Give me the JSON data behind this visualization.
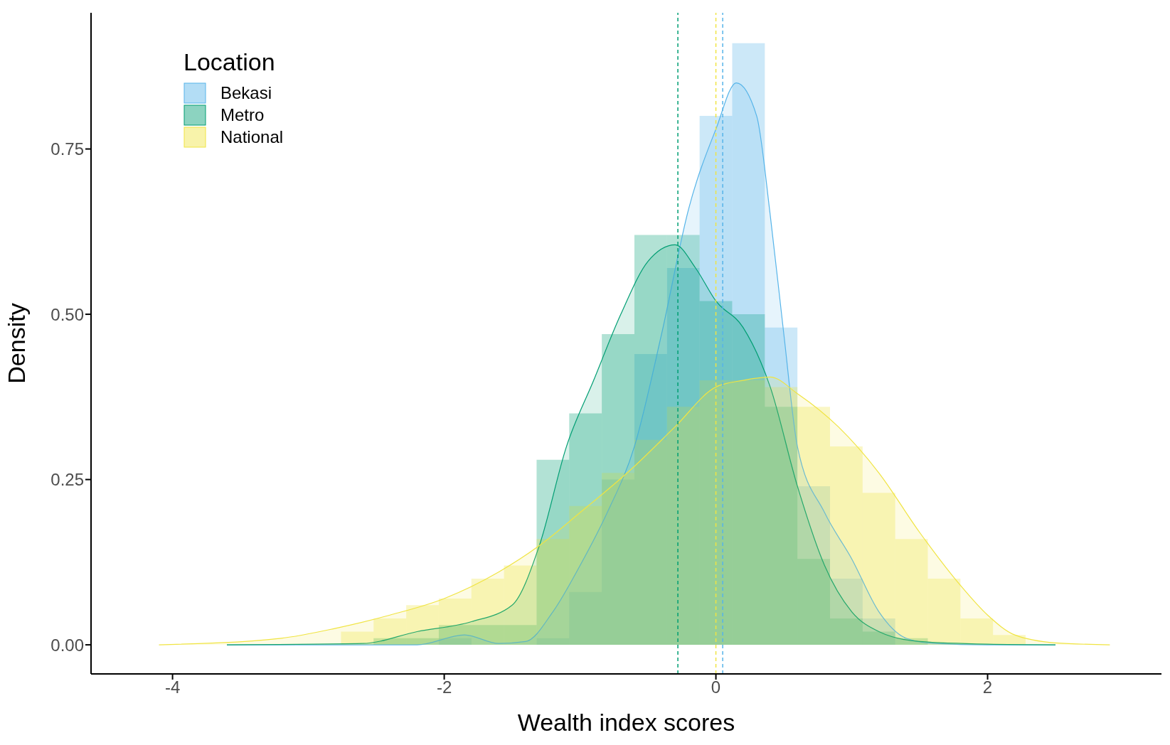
{
  "chart_data": {
    "type": "histogram",
    "xlabel": "Wealth index scores",
    "ylabel": "Density",
    "legend_title": "Location",
    "legend": "top left",
    "grid": false,
    "bins": [
      -2.76,
      -2.52,
      -2.28,
      -2.04,
      -1.8,
      -1.56,
      -1.32,
      -1.08,
      -0.84,
      -0.6,
      -0.36,
      -0.12,
      0.12,
      0.36,
      0.6,
      0.84,
      1.08,
      1.32,
      1.56,
      1.8,
      2.04,
      2.28
    ],
    "xlim": [
      -4.6,
      3.28
    ],
    "xticks": [
      -4,
      -2,
      0,
      2
    ],
    "ylim": [
      -0.044,
      0.956
    ],
    "yticks": [
      {
        "value": 0,
        "label": "0.00"
      },
      0.25,
      {
        "value": 0.5,
        "label": "0.50"
      },
      0.75
    ],
    "series": [
      {
        "name": "Bekasi",
        "color": "#56b4e9",
        "values": [
          0,
          0,
          0,
          0.01,
          null,
          0,
          0.01,
          0.08,
          0.25,
          0.44,
          0.57,
          0.8,
          0.91,
          0.48,
          0.24,
          0.1,
          0.04,
          0,
          0,
          0,
          0
        ]
      },
      {
        "name": "Metro",
        "color": "#009e73",
        "values": [
          0,
          0.01,
          0.01,
          0.03,
          0.03,
          0.03,
          0.28,
          0.35,
          0.47,
          0.62,
          0.62,
          0.52,
          0.5,
          0.36,
          0.13,
          0.04,
          0.02,
          0.01,
          0,
          0,
          0
        ]
      },
      {
        "name": "National",
        "color": "#f0e442",
        "values": [
          0.02,
          0.04,
          0.06,
          0.07,
          0.1,
          0.12,
          0.16,
          0.21,
          0.26,
          0.31,
          0.36,
          0.4,
          0.4,
          0.39,
          0.36,
          0.3,
          0.23,
          0.16,
          0.1,
          0.04,
          0.015
        ]
      },
      {
        "type": "area",
        "color": "#56b4e9",
        "x": [
          -3.6,
          -2.2,
          -1.85,
          -1.6,
          -1.4,
          -1.2,
          -1,
          -0.8,
          -0.6,
          -0.4,
          -0.2,
          0,
          0.15,
          0.3,
          0.4,
          0.5,
          0.6,
          0.8,
          1,
          1.2,
          1.4,
          1.6,
          2,
          2.5
        ],
        "values": [
          0,
          0,
          0.015,
          0.002,
          0.005,
          0.05,
          0.12,
          0.2,
          0.3,
          0.47,
          0.66,
          0.78,
          0.85,
          0.8,
          0.65,
          0.47,
          0.3,
          0.2,
          0.13,
          0.05,
          0.01,
          0.002,
          0,
          0
        ]
      },
      {
        "type": "area",
        "color": "#009e73",
        "x": [
          -3.6,
          -2.6,
          -2.2,
          -1.8,
          -1.5,
          -1.3,
          -1.1,
          -0.9,
          -0.7,
          -0.5,
          -0.3,
          -0.15,
          0,
          0.2,
          0.4,
          0.6,
          0.8,
          1,
          1.2,
          1.5,
          2,
          2.5
        ],
        "values": [
          0,
          0.002,
          0.02,
          0.035,
          0.06,
          0.15,
          0.3,
          0.4,
          0.5,
          0.58,
          0.605,
          0.57,
          0.52,
          0.48,
          0.39,
          0.24,
          0.12,
          0.05,
          0.02,
          0.005,
          0.001,
          0
        ]
      },
      {
        "type": "area",
        "color": "#f0e442",
        "x": [
          -4.1,
          -3.2,
          -2.8,
          -2.4,
          -2,
          -1.6,
          -1.3,
          -1,
          -0.6,
          -0.3,
          0,
          0.2,
          0.4,
          0.6,
          0.9,
          1.2,
          1.5,
          1.8,
          2,
          2.2,
          2.5,
          2.9
        ],
        "values": [
          0,
          0.01,
          0.025,
          0.045,
          0.07,
          0.11,
          0.15,
          0.2,
          0.27,
          0.33,
          0.39,
          0.4,
          0.405,
          0.38,
          0.33,
          0.26,
          0.17,
          0.09,
          0.045,
          0.015,
          0.003,
          0
        ]
      }
    ],
    "ref_lines": [
      {
        "axis": "x",
        "value": 0.05,
        "color": "#56b4e9",
        "line_style": "dashed"
      },
      {
        "axis": "x",
        "value": -0.28,
        "color": "#009e73",
        "line_style": "dashed"
      },
      {
        "axis": "x",
        "value": 0,
        "color": "#f0e442",
        "line_style": "dashed"
      }
    ]
  }
}
